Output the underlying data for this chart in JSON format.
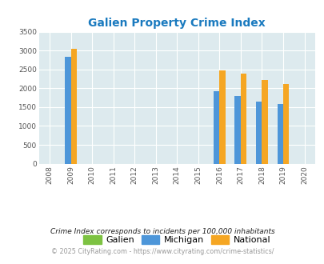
{
  "title": "Galien Property Crime Index",
  "years": [
    2008,
    2009,
    2010,
    2011,
    2012,
    2013,
    2014,
    2015,
    2016,
    2017,
    2018,
    2019,
    2020
  ],
  "galien": [
    null,
    null,
    null,
    null,
    null,
    null,
    null,
    null,
    null,
    null,
    null,
    null,
    null
  ],
  "michigan": [
    null,
    2830,
    null,
    null,
    null,
    null,
    null,
    null,
    1920,
    1800,
    1640,
    1580,
    null
  ],
  "national": [
    null,
    3040,
    null,
    null,
    null,
    null,
    null,
    null,
    2480,
    2380,
    2210,
    2120,
    null
  ],
  "bar_width": 0.28,
  "color_galien": "#7dc242",
  "color_michigan": "#4d96d9",
  "color_national": "#f5a623",
  "ylim": [
    0,
    3500
  ],
  "yticks": [
    0,
    500,
    1000,
    1500,
    2000,
    2500,
    3000,
    3500
  ],
  "background_color": "#ddeaee",
  "grid_color": "#ffffff",
  "title_color": "#1a7abf",
  "tick_color": "#555555",
  "footnote1": "Crime Index corresponds to incidents per 100,000 inhabitants",
  "footnote2": "© 2025 CityRating.com - https://www.cityrating.com/crime-statistics/",
  "footnote1_color": "#222222",
  "footnote2_color": "#999999"
}
